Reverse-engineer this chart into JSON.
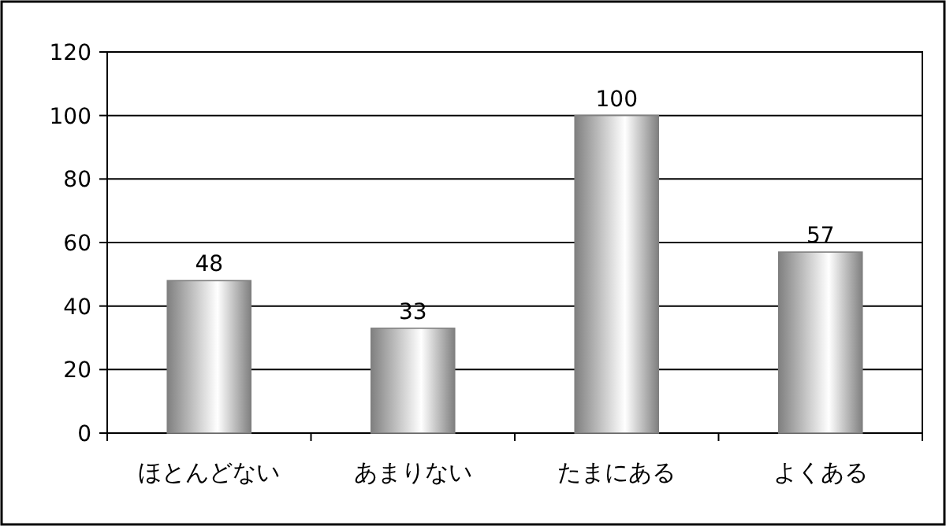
{
  "chart_data": {
    "type": "bar",
    "categories": [
      "ほとんどない",
      "あまりない",
      "たまにある",
      "よくある"
    ],
    "values": [
      48,
      33,
      100,
      57
    ],
    "color": "#808080",
    "ylim": [
      0,
      120
    ],
    "yticks": [
      0,
      20,
      40,
      60,
      80,
      100,
      120
    ],
    "grid": "y",
    "data_labels": true
  }
}
